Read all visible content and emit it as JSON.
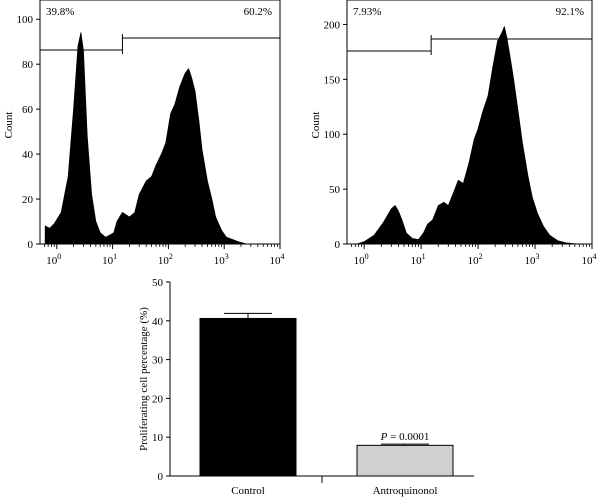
{
  "chart_data": [
    {
      "type": "area",
      "subtype": "flow-cytometry-histogram",
      "ylabel": "Count",
      "xscale": "log",
      "xlim": [
        0.5,
        10000
      ],
      "ylim": [
        0,
        105
      ],
      "yticks": [
        "0",
        "20",
        "40",
        "60",
        "80",
        "100"
      ],
      "xticks": [
        {
          "base": "10",
          "exp": "0",
          "value": 1
        },
        {
          "base": "10",
          "exp": "1",
          "value": 10
        },
        {
          "base": "10",
          "exp": "2",
          "value": 100
        },
        {
          "base": "10",
          "exp": "3",
          "value": 1000
        },
        {
          "base": "10",
          "exp": "4",
          "value": 10000
        }
      ],
      "gate_boundary": 15,
      "gate_left_label": "39.8%",
      "gate_right_label": "60.2%",
      "fill_color": "#000000",
      "x": [
        0.62,
        0.75,
        0.9,
        1.2,
        1.6,
        2.0,
        2.4,
        2.7,
        3.0,
        3.5,
        4.2,
        5.0,
        6.0,
        7.5,
        9.0,
        10.5,
        12,
        15,
        20,
        25,
        30,
        40,
        50,
        60,
        75,
        90,
        110,
        130,
        160,
        200,
        230,
        260,
        300,
        350,
        400,
        500,
        600,
        700,
        900,
        1100,
        1400,
        1800,
        2500
      ],
      "y": [
        8,
        7,
        9,
        14,
        30,
        60,
        88,
        94,
        86,
        48,
        22,
        10,
        5,
        3,
        4,
        5,
        10,
        14,
        12,
        14,
        22,
        28,
        30,
        35,
        40,
        45,
        58,
        62,
        70,
        76,
        78,
        74,
        68,
        55,
        42,
        28,
        20,
        12,
        6,
        3,
        2,
        1,
        0
      ]
    },
    {
      "type": "area",
      "subtype": "flow-cytometry-histogram",
      "ylabel": "Count",
      "xscale": "log",
      "xlim": [
        0.5,
        10000
      ],
      "ylim": [
        0,
        215
      ],
      "yticks": [
        "0",
        "50",
        "100",
        "150",
        "200"
      ],
      "xticks": [
        {
          "base": "10",
          "exp": "0",
          "value": 1
        },
        {
          "base": "10",
          "exp": "1",
          "value": 10
        },
        {
          "base": "10",
          "exp": "2",
          "value": 100
        },
        {
          "base": "10",
          "exp": "3",
          "value": 1000
        },
        {
          "base": "10",
          "exp": "4",
          "value": 10000
        }
      ],
      "gate_boundary": 15,
      "gate_left_label": "7.93%",
      "gate_right_label": "92.1%",
      "fill_color": "#000000",
      "x": [
        0.75,
        1.0,
        1.5,
        2.2,
        3.0,
        3.5,
        4.0,
        4.6,
        5.5,
        7.0,
        9.0,
        11,
        13,
        16,
        20,
        25,
        30,
        38,
        45,
        55,
        70,
        85,
        100,
        120,
        150,
        180,
        220,
        260,
        290,
        320,
        360,
        420,
        500,
        600,
        750,
        900,
        1100,
        1400,
        1800,
        2500,
        3500,
        5500
      ],
      "y": [
        0,
        2,
        8,
        20,
        32,
        35,
        30,
        22,
        10,
        5,
        4,
        10,
        18,
        22,
        35,
        38,
        35,
        48,
        58,
        55,
        75,
        95,
        105,
        120,
        135,
        160,
        185,
        192,
        198,
        188,
        172,
        150,
        122,
        92,
        62,
        42,
        28,
        16,
        8,
        3,
        1,
        0
      ]
    },
    {
      "type": "bar",
      "ylabel": "Proliferating cell percentage (%)",
      "ylim": [
        0,
        50
      ],
      "yticks": [
        "0",
        "10",
        "20",
        "30",
        "40",
        "50"
      ],
      "categories": [
        "Control",
        "Antroquinonol"
      ],
      "values": [
        40.6,
        7.9
      ],
      "errors": [
        1.3,
        0.3
      ],
      "colors": [
        "#000000",
        "#d0d0d0"
      ],
      "annotation": {
        "prefix": "P",
        "text": " = 0.0001"
      }
    }
  ]
}
